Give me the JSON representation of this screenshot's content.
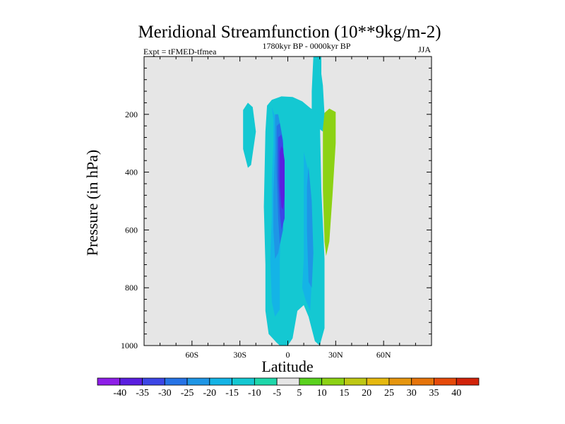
{
  "chart_data": {
    "type": "contour",
    "title": "Meridional Streamfunction (10**9kg/m-2)",
    "left_string": "Expt = tFMED-tfmea",
    "center_string": "1780kyr BP - 0000kyr BP",
    "right_string": "JJA",
    "xlabel": "Latitude",
    "ylabel": "Pressure (in hPa)",
    "xlim": [
      -90,
      90
    ],
    "ylim": [
      1000,
      0
    ],
    "x_ticks": [
      -60,
      -30,
      0,
      30,
      60
    ],
    "x_tick_labels": [
      "60S",
      "30S",
      "0",
      "30N",
      "60N"
    ],
    "y_ticks": [
      200,
      400,
      600,
      800,
      1000
    ],
    "y_tick_labels": [
      "200",
      "400",
      "600",
      "800",
      "1000"
    ],
    "background_color": "#e6e6e6",
    "colorbar": {
      "levels": [
        -40,
        -35,
        -30,
        -25,
        -20,
        -15,
        -10,
        -5,
        5,
        10,
        15,
        20,
        25,
        30,
        35,
        40
      ],
      "level_labels": [
        "-40",
        "-35",
        "-30",
        "-25",
        "-20",
        "-15",
        "-10",
        "-5",
        "5",
        "10",
        "15",
        "20",
        "25",
        "30",
        "35",
        "40"
      ],
      "colors": [
        "#8e1ee8",
        "#5a1ee0",
        "#3c46e6",
        "#2673e6",
        "#1e96e6",
        "#14b4e6",
        "#14c8d2",
        "#1ed7aa",
        "#e6e6e6",
        "#5ad21e",
        "#8cd214",
        "#bec814",
        "#e6b90f",
        "#e6960f",
        "#e6740a",
        "#e64a0a",
        "#d2230a"
      ]
    },
    "regions": [
      {
        "level": -10,
        "name": "southern-cell",
        "points": [
          [
            -28,
            185
          ],
          [
            -25,
            160
          ],
          [
            -22,
            175
          ],
          [
            -20,
            260
          ],
          [
            -23,
            375
          ],
          [
            -25,
            385
          ],
          [
            -28,
            320
          ],
          [
            -28,
            230
          ]
        ]
      },
      {
        "level": -10,
        "name": "upper-column",
        "points": [
          [
            15,
            230
          ],
          [
            15,
            120
          ],
          [
            16,
            0
          ],
          [
            21,
            0
          ],
          [
            21,
            60
          ],
          [
            22,
            100
          ],
          [
            23,
            200
          ],
          [
            22,
            260
          ]
        ]
      },
      {
        "level": -10,
        "name": "main-outer",
        "points": [
          [
            -7,
            990
          ],
          [
            -12,
            960
          ],
          [
            -14,
            880
          ],
          [
            -14,
            720
          ],
          [
            -15,
            520
          ],
          [
            -14,
            260
          ],
          [
            -13,
            170
          ],
          [
            -10,
            150
          ],
          [
            -4,
            138
          ],
          [
            3,
            140
          ],
          [
            9,
            155
          ],
          [
            14,
            178
          ],
          [
            20,
            200
          ],
          [
            21,
            460
          ],
          [
            23,
            700
          ],
          [
            23,
            940
          ],
          [
            20,
            1000
          ],
          [
            17,
            985
          ],
          [
            13,
            900
          ],
          [
            10,
            860
          ],
          [
            6,
            880
          ],
          [
            3,
            975
          ],
          [
            0,
            1000
          ],
          [
            -5,
            1000
          ]
        ]
      },
      {
        "level": -15,
        "name": "band-15",
        "points": [
          [
            -9,
            300
          ],
          [
            -10,
            420
          ],
          [
            -10,
            560
          ],
          [
            -11,
            700
          ],
          [
            -10,
            850
          ],
          [
            -8,
            900
          ],
          [
            -5,
            875
          ],
          [
            -5,
            700
          ],
          [
            -3,
            360
          ],
          [
            -6,
            240
          ],
          [
            -10,
            175
          ],
          [
            -9,
            220
          ]
        ]
      },
      {
        "level": -15,
        "name": "band-15-east",
        "points": [
          [
            10,
            330
          ],
          [
            13,
            400
          ],
          [
            14,
            600
          ],
          [
            15,
            780
          ],
          [
            14,
            880
          ],
          [
            11,
            840
          ],
          [
            9,
            800
          ],
          [
            10,
            700
          ],
          [
            10,
            500
          ]
        ]
      },
      {
        "level": -20,
        "name": "band-20",
        "points": [
          [
            -8,
            200
          ],
          [
            -8,
            320
          ],
          [
            -9,
            480
          ],
          [
            -9,
            600
          ],
          [
            -8,
            700
          ],
          [
            -6,
            680
          ],
          [
            -4,
            620
          ],
          [
            -2,
            420
          ],
          [
            -4,
            260
          ],
          [
            -6,
            200
          ]
        ]
      },
      {
        "level": -20,
        "name": "band-20-east",
        "points": [
          [
            13,
            380
          ],
          [
            15,
            500
          ],
          [
            16,
            680
          ],
          [
            15,
            800
          ],
          [
            13,
            780
          ],
          [
            12,
            600
          ],
          [
            12,
            450
          ]
        ]
      },
      {
        "level": -25,
        "name": "band-25",
        "points": [
          [
            -7,
            240
          ],
          [
            -7,
            400
          ],
          [
            -6,
            560
          ],
          [
            -5,
            650
          ],
          [
            -3,
            600
          ],
          [
            -2,
            450
          ],
          [
            -3,
            290
          ],
          [
            -5,
            230
          ]
        ]
      },
      {
        "level": -30,
        "name": "band-30",
        "points": [
          [
            -6,
            280
          ],
          [
            -6,
            420
          ],
          [
            -5,
            540
          ],
          [
            -4,
            600
          ],
          [
            -2,
            560
          ],
          [
            -2,
            400
          ],
          [
            -3,
            300
          ],
          [
            -4,
            270
          ]
        ]
      },
      {
        "level": -35,
        "name": "core",
        "points": [
          [
            -5,
            330
          ],
          [
            -5,
            450
          ],
          [
            -4,
            520
          ],
          [
            -3,
            530
          ],
          [
            -2,
            480
          ],
          [
            -2,
            360
          ],
          [
            -3,
            320
          ],
          [
            -4,
            310
          ]
        ]
      },
      {
        "level": 10,
        "name": "positive-cell",
        "points": [
          [
            26,
            180
          ],
          [
            30,
            192
          ],
          [
            30,
            300
          ],
          [
            28,
            480
          ],
          [
            26,
            640
          ],
          [
            24,
            690
          ],
          [
            23,
            640
          ],
          [
            22,
            460
          ],
          [
            22,
            250
          ],
          [
            23,
            195
          ]
        ]
      }
    ]
  }
}
